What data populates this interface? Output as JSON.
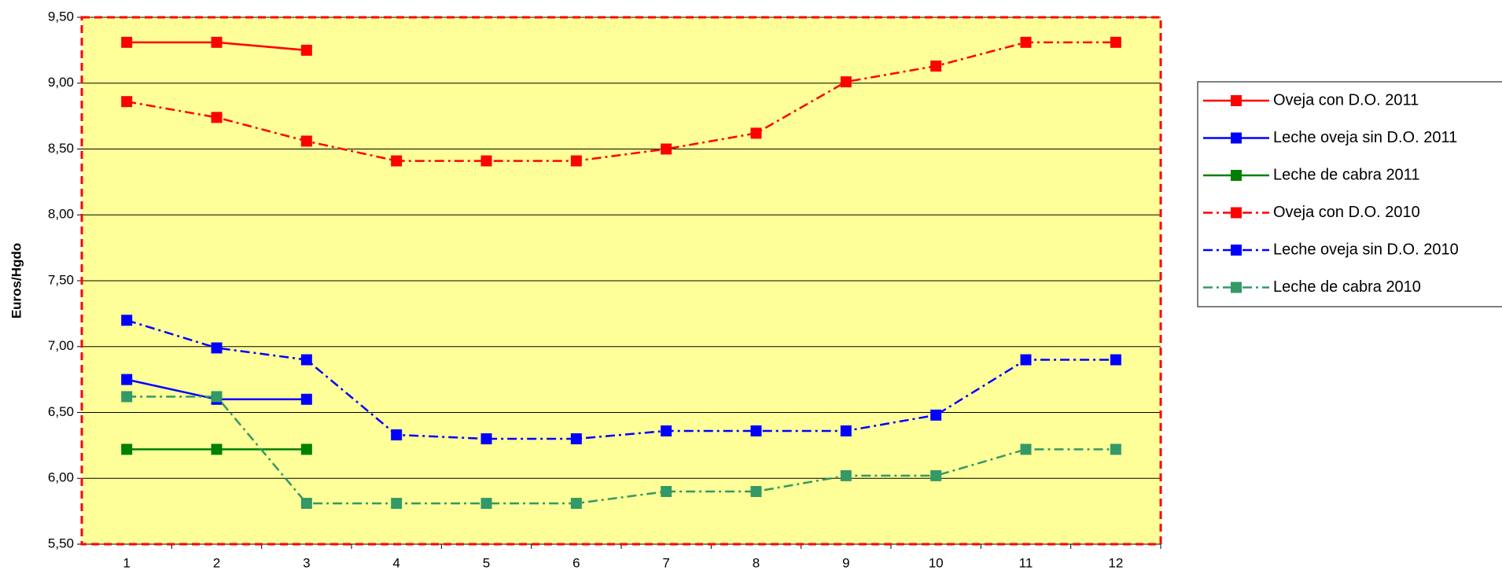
{
  "chart_data": {
    "type": "line",
    "y_label": "Euros/Hgdo",
    "categories": [
      "1",
      "2",
      "3",
      "4",
      "5",
      "6",
      "7",
      "8",
      "9",
      "10",
      "11",
      "12"
    ],
    "ylim": [
      5.5,
      9.5
    ],
    "yticks": [
      {
        "value": 5.5,
        "label": "5,50"
      },
      {
        "value": 6,
        "label": "6,00"
      },
      {
        "value": 6.5,
        "label": "6,50"
      },
      {
        "value": 7,
        "label": "7,00"
      },
      {
        "value": 7.5,
        "label": "7,50"
      },
      {
        "value": 8,
        "label": "8,00"
      },
      {
        "value": 8.5,
        "label": "8,50"
      },
      {
        "value": 9,
        "label": "9,00"
      },
      {
        "value": 9.5,
        "label": "9,50"
      }
    ],
    "grid": true,
    "background": "#ffff99",
    "legend": "right",
    "series": [
      {
        "name": "Oveja con D.O. 2011",
        "color": "#ff0000",
        "dash": "solid",
        "values": [
          9.31,
          9.31,
          9.25,
          null,
          null,
          null,
          null,
          null,
          null,
          null,
          null,
          null
        ]
      },
      {
        "name": "Leche oveja sin D.O. 2011",
        "color": "#0000ff",
        "dash": "solid",
        "values": [
          6.75,
          6.6,
          6.6,
          null,
          null,
          null,
          null,
          null,
          null,
          null,
          null,
          null
        ]
      },
      {
        "name": "Leche de cabra 2011",
        "color": "#008000",
        "dash": "solid",
        "values": [
          6.22,
          6.22,
          6.22,
          null,
          null,
          null,
          null,
          null,
          null,
          null,
          null,
          null
        ]
      },
      {
        "name": "Oveja con D.O. 2010",
        "color": "#ff0000",
        "dash": "dashdot",
        "values": [
          8.86,
          8.74,
          8.56,
          8.41,
          8.41,
          8.41,
          8.5,
          8.62,
          9.01,
          9.13,
          9.31,
          9.31
        ]
      },
      {
        "name": "Leche oveja sin D.O. 2010",
        "color": "#0000ff",
        "dash": "dashdot",
        "values": [
          7.2,
          6.99,
          6.9,
          6.33,
          6.3,
          6.3,
          6.36,
          6.36,
          6.36,
          6.48,
          6.9,
          6.9
        ]
      },
      {
        "name": "Leche de cabra 2010",
        "color": "#339966",
        "dash": "dashdot",
        "values": [
          6.62,
          6.62,
          5.81,
          5.81,
          5.81,
          5.81,
          5.9,
          5.9,
          6.02,
          6.02,
          6.22,
          6.22
        ]
      }
    ]
  }
}
